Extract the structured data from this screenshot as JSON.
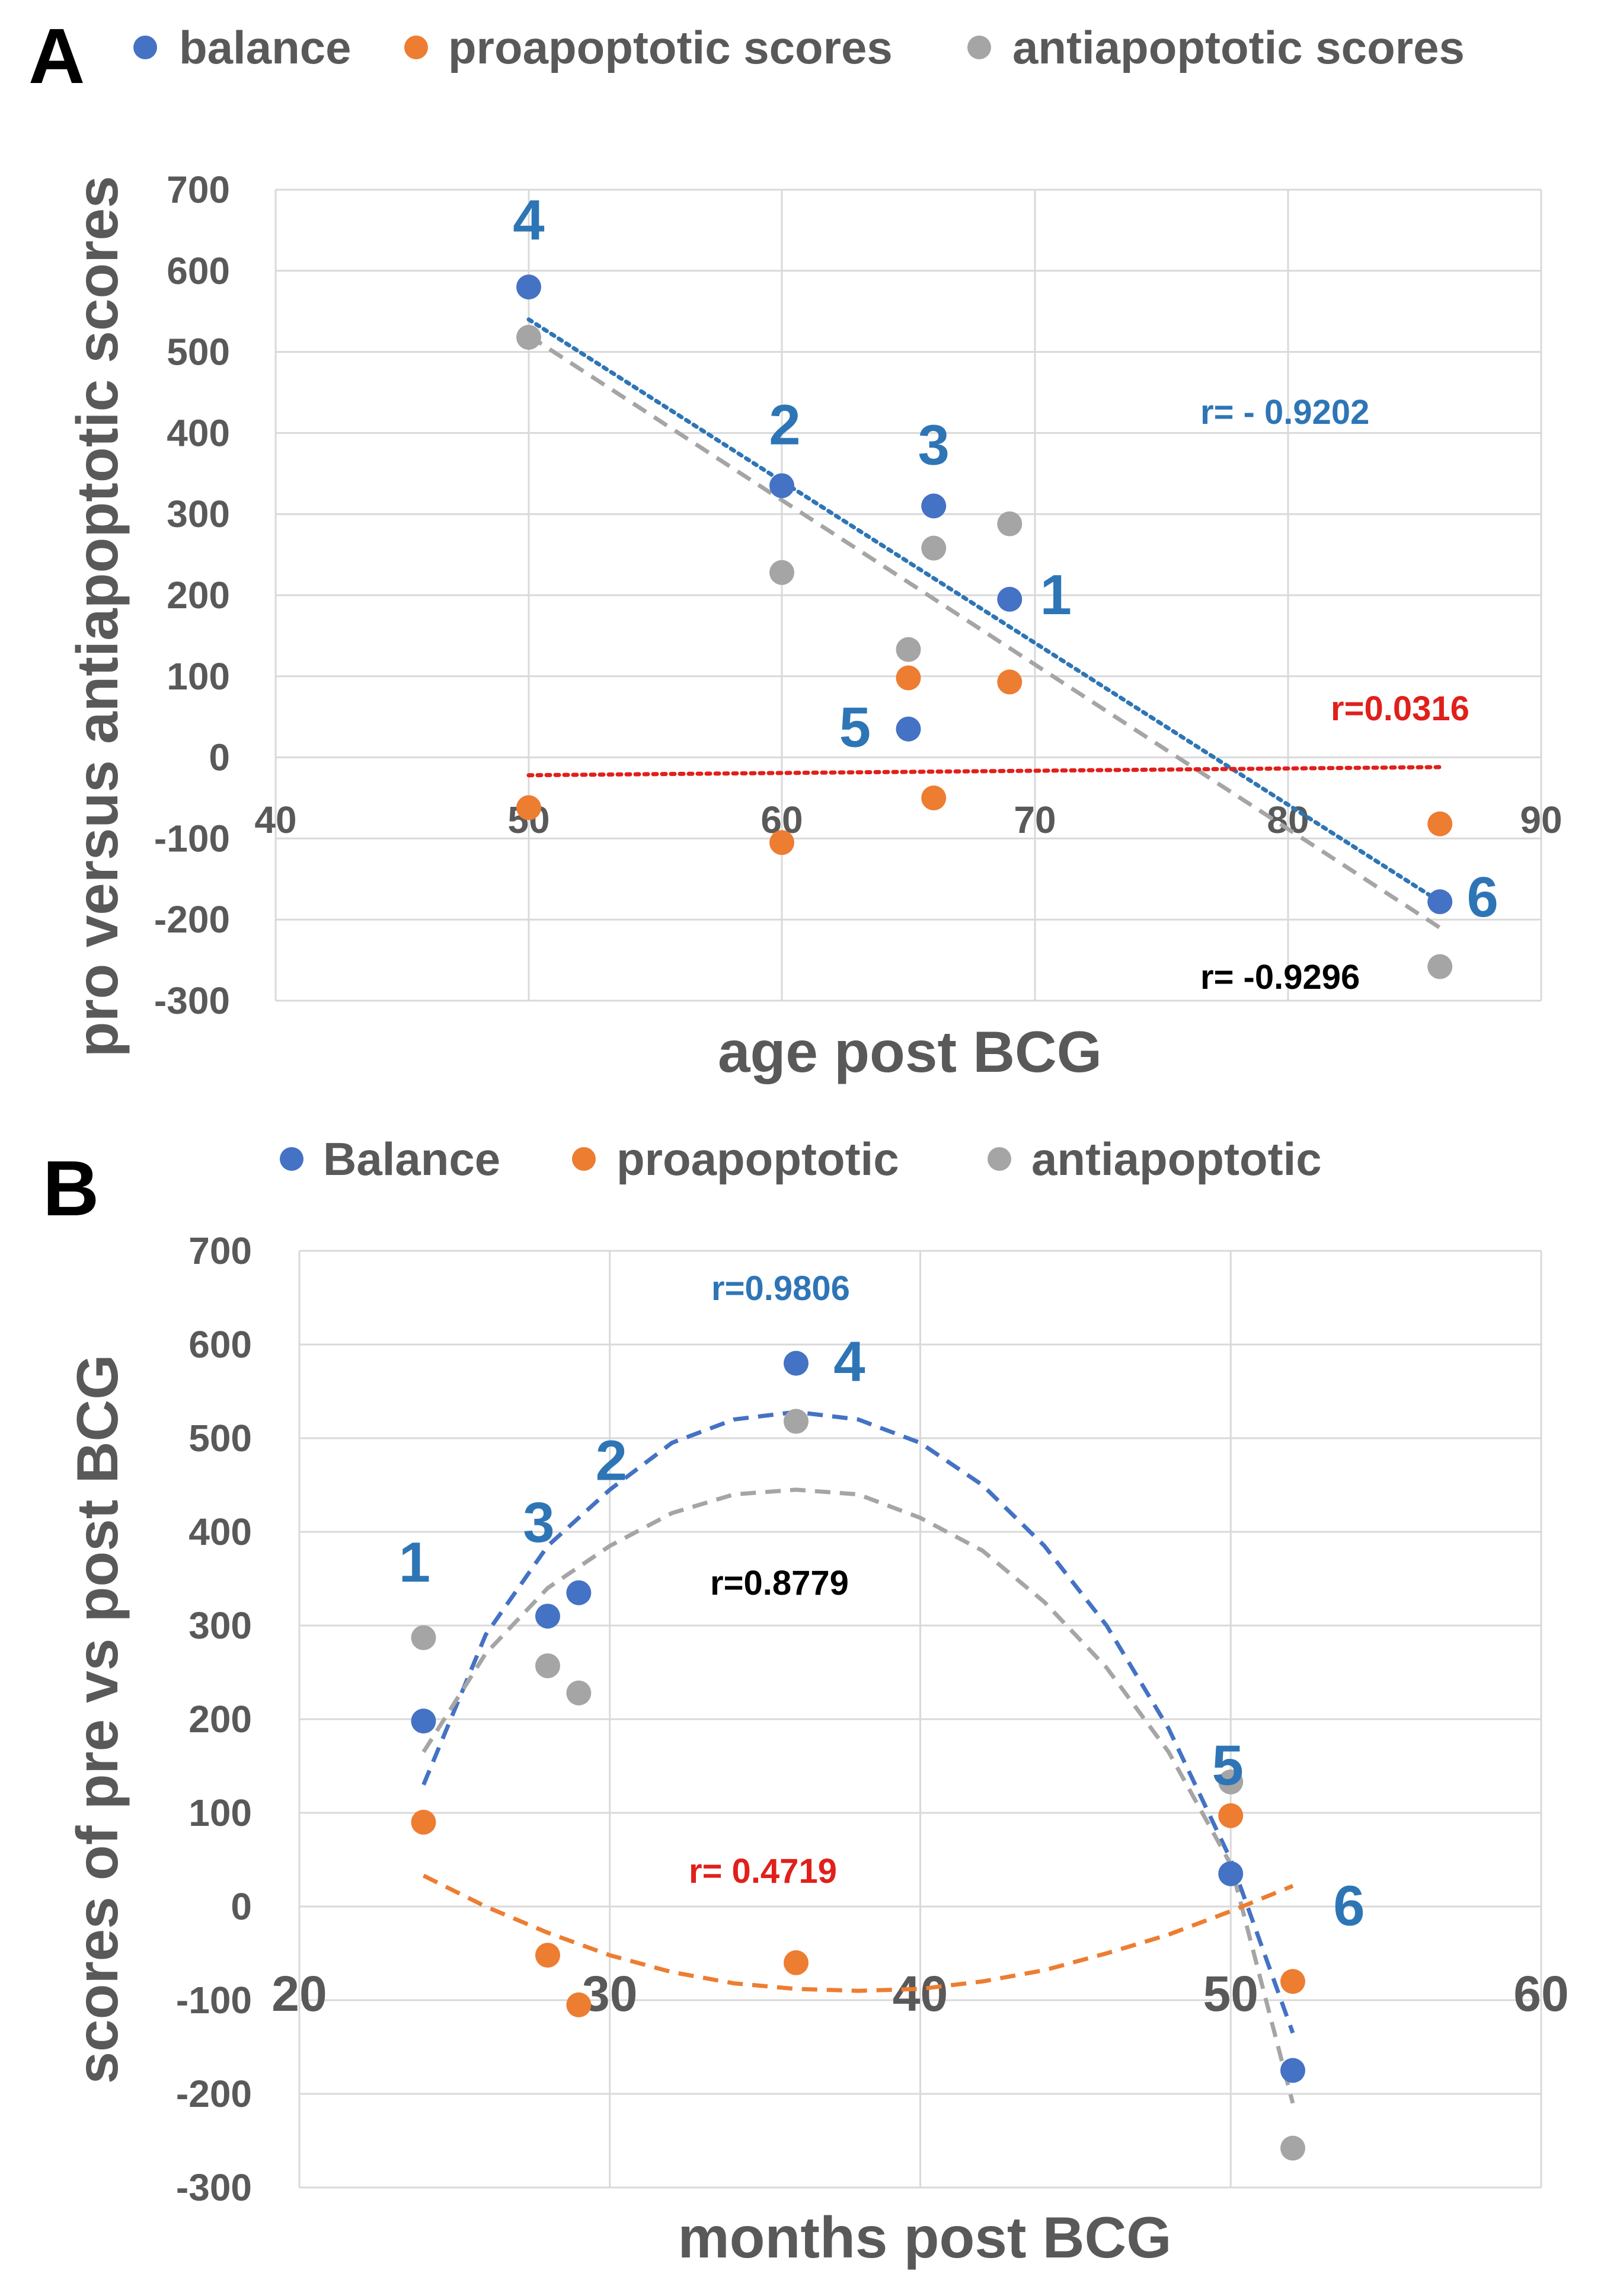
{
  "colors": {
    "balance": "#4472c4",
    "proapoptotic": "#ed7d31",
    "antiapoptotic": "#a5a5a5",
    "balance_trend": "#2e75b6",
    "pro_trend_a": "#e0201b",
    "anti_trend": "#a5a5a5",
    "pro_trend_b": "#ed7d31",
    "point_label": "#2e75b6",
    "r_balance": "#2e75b6",
    "r_pro": "#e0201b",
    "r_anti": "#000000"
  },
  "chart_data": [
    {
      "panel": "A",
      "type": "scatter",
      "xlabel": "age post BCG",
      "ylabel": "pro versus antiapoptotic scores",
      "xlim": [
        40,
        90
      ],
      "ylim": [
        -300,
        700
      ],
      "x_ticks": [
        40,
        50,
        60,
        70,
        80,
        90
      ],
      "y_ticks": [
        700,
        600,
        500,
        400,
        300,
        200,
        100,
        0,
        -100,
        -200,
        -300
      ],
      "legend": [
        "balance",
        "proapoptotic scores",
        "antiapoptotic scores"
      ],
      "series": [
        {
          "name": "balance",
          "color_key": "balance",
          "points": [
            [
              50,
              580
            ],
            [
              60,
              335
            ],
            [
              66,
              310
            ],
            [
              69,
              195
            ],
            [
              65,
              35
            ],
            [
              86,
              -178
            ]
          ]
        },
        {
          "name": "proapoptotic scores",
          "color_key": "proapoptotic",
          "points": [
            [
              50,
              -62
            ],
            [
              60,
              -105
            ],
            [
              66,
              -50
            ],
            [
              69,
              93
            ],
            [
              65,
              98
            ],
            [
              86,
              -82
            ]
          ]
        },
        {
          "name": "antiapoptotic scores",
          "color_key": "antiapoptotic",
          "points": [
            [
              50,
              518
            ],
            [
              60,
              228
            ],
            [
              66,
              258
            ],
            [
              69,
              288
            ],
            [
              65,
              133
            ],
            [
              86,
              -258
            ]
          ]
        }
      ],
      "trendlines": [
        {
          "series": "balance",
          "kind": "linear",
          "style": "dotted",
          "color_key": "balance_trend",
          "from": [
            50,
            540
          ],
          "to": [
            86,
            -178
          ]
        },
        {
          "series": "antiapoptotic scores",
          "kind": "linear",
          "style": "dashed",
          "color_key": "anti_trend",
          "from": [
            50,
            520
          ],
          "to": [
            86,
            -210
          ]
        },
        {
          "series": "proapoptotic scores",
          "kind": "linear",
          "style": "dotted",
          "color_key": "pro_trend_a",
          "from": [
            50,
            -22
          ],
          "to": [
            86,
            -12
          ]
        }
      ],
      "point_labels": [
        {
          "text": "4",
          "x": 50,
          "y": 580
        },
        {
          "text": "2",
          "x": 60,
          "y": 335
        },
        {
          "text": "3",
          "x": 66,
          "y": 310
        },
        {
          "text": "1",
          "x": 69,
          "y": 195
        },
        {
          "text": "5",
          "x": 65,
          "y": 35
        },
        {
          "text": "6",
          "x": 86,
          "y": -178
        }
      ],
      "r_labels": [
        {
          "text": "r= - 0.9202",
          "color_key": "r_balance"
        },
        {
          "text": "r=0.0316",
          "color_key": "r_pro"
        },
        {
          "text": "r= -0.9296",
          "color_key": "r_anti"
        }
      ]
    },
    {
      "panel": "B",
      "type": "scatter",
      "xlabel": "months post BCG",
      "ylabel": "scores of pre vs post BCG",
      "xlim": [
        20,
        60
      ],
      "ylim": [
        -300,
        700
      ],
      "x_ticks": [
        20,
        30,
        40,
        50,
        60
      ],
      "y_ticks": [
        700,
        600,
        500,
        400,
        300,
        200,
        100,
        0,
        -100,
        -200,
        -300
      ],
      "legend": [
        "Balance",
        "proapoptotic",
        "antiapoptotic"
      ],
      "series": [
        {
          "name": "Balance",
          "color_key": "balance",
          "points": [
            [
              24,
              198
            ],
            [
              28,
              310
            ],
            [
              29,
              335
            ],
            [
              36,
              580
            ],
            [
              50,
              35
            ],
            [
              52,
              -175
            ]
          ]
        },
        {
          "name": "proapoptotic",
          "color_key": "proapoptotic",
          "points": [
            [
              24,
              90
            ],
            [
              28,
              -52
            ],
            [
              29,
              -105
            ],
            [
              36,
              -60
            ],
            [
              50,
              97
            ],
            [
              52,
              -80
            ]
          ]
        },
        {
          "name": "antiapoptotic",
          "color_key": "antiapoptotic",
          "points": [
            [
              24,
              287
            ],
            [
              28,
              257
            ],
            [
              29,
              228
            ],
            [
              36,
              518
            ],
            [
              50,
              133
            ],
            [
              52,
              -258
            ]
          ]
        }
      ],
      "trendlines": [
        {
          "series": "Balance",
          "kind": "polynomial",
          "style": "dashed",
          "color_key": "balance",
          "from_x": 24,
          "to_x": 52,
          "points": [
            [
              24,
              130
            ],
            [
              26,
              290
            ],
            [
              28,
              385
            ],
            [
              30,
              445
            ],
            [
              32,
              495
            ],
            [
              34,
              520
            ],
            [
              36,
              528
            ],
            [
              38,
              520
            ],
            [
              40,
              495
            ],
            [
              42,
              450
            ],
            [
              44,
              385
            ],
            [
              46,
              300
            ],
            [
              48,
              190
            ],
            [
              50,
              50
            ],
            [
              52,
              -135
            ]
          ]
        },
        {
          "series": "antiapoptotic",
          "kind": "polynomial",
          "style": "dashed",
          "color_key": "antiapoptotic",
          "from_x": 24,
          "to_x": 52,
          "points": [
            [
              24,
              165
            ],
            [
              26,
              270
            ],
            [
              28,
              340
            ],
            [
              30,
              385
            ],
            [
              32,
              420
            ],
            [
              34,
              440
            ],
            [
              36,
              445
            ],
            [
              38,
              440
            ],
            [
              40,
              415
            ],
            [
              42,
              380
            ],
            [
              44,
              325
            ],
            [
              46,
              255
            ],
            [
              48,
              165
            ],
            [
              50,
              45
            ],
            [
              52,
              -210
            ]
          ]
        },
        {
          "series": "proapoptotic",
          "kind": "polynomial",
          "style": "dashed",
          "color_key": "pro_trend_b",
          "from_x": 24,
          "to_x": 52,
          "points": [
            [
              24,
              33
            ],
            [
              26,
              0
            ],
            [
              28,
              -28
            ],
            [
              30,
              -52
            ],
            [
              32,
              -70
            ],
            [
              34,
              -82
            ],
            [
              36,
              -88
            ],
            [
              38,
              -90
            ],
            [
              40,
              -88
            ],
            [
              42,
              -80
            ],
            [
              44,
              -68
            ],
            [
              46,
              -50
            ],
            [
              48,
              -30
            ],
            [
              50,
              -5
            ],
            [
              52,
              22
            ]
          ]
        }
      ],
      "point_labels": [
        {
          "text": "1",
          "x": 24,
          "y": 198
        },
        {
          "text": "3",
          "x": 28,
          "y": 310
        },
        {
          "text": "2",
          "x": 29,
          "y": 335
        },
        {
          "text": "4",
          "x": 36,
          "y": 580
        },
        {
          "text": "5",
          "x": 50,
          "y": 35
        },
        {
          "text": "6",
          "x": 52,
          "y": -175
        }
      ],
      "r_labels": [
        {
          "text": "r=0.9806",
          "color_key": "r_balance"
        },
        {
          "text": "r=0.8779",
          "color_key": "r_anti"
        },
        {
          "text": "r= 0.4719",
          "color_key": "r_pro"
        }
      ]
    }
  ]
}
